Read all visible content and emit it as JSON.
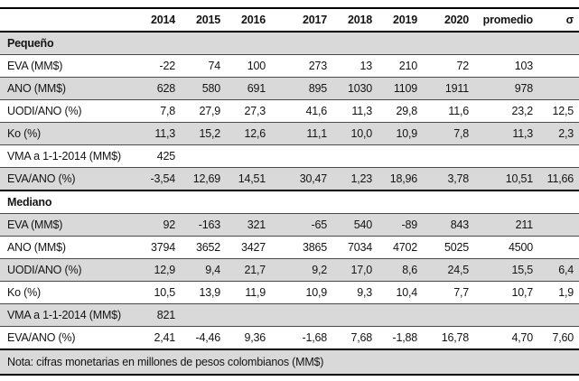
{
  "table": {
    "columns": [
      "2014",
      "2015",
      "2016",
      "2017",
      "2018",
      "2019",
      "2020",
      "promedio",
      "σ"
    ],
    "sections": [
      {
        "title": "Pequeño",
        "rows": [
          {
            "label": "EVA (MM$)",
            "values": [
              "-22",
              "74",
              "100",
              "273",
              "13",
              "210",
              "72",
              "103",
              ""
            ]
          },
          {
            "label": "ANO (MM$)",
            "values": [
              "628",
              "580",
              "691",
              "895",
              "1030",
              "1109",
              "1911",
              "978",
              ""
            ]
          },
          {
            "label": "UODI/ANO (%)",
            "values": [
              "7,8",
              "27,9",
              "27,3",
              "41,6",
              "11,3",
              "29,8",
              "11,6",
              "23,2",
              "12,5"
            ]
          },
          {
            "label": "Ko (%)",
            "values": [
              "11,3",
              "15,2",
              "12,6",
              "11,1",
              "10,0",
              "10,9",
              "7,8",
              "11,3",
              "2,3"
            ]
          },
          {
            "label": "VMA a 1-1-2014 (MM$)",
            "values": [
              "425",
              "",
              "",
              "",
              "",
              "",
              "",
              "",
              ""
            ]
          },
          {
            "label": "EVA/ANO (%)",
            "values": [
              "-3,54",
              "12,69",
              "14,51",
              "30,47",
              "1,23",
              "18,96",
              "3,78",
              "10,51",
              "11,66"
            ]
          }
        ]
      },
      {
        "title": "Mediano",
        "rows": [
          {
            "label": "EVA (MM$)",
            "values": [
              "92",
              "-163",
              "321",
              "-65",
              "540",
              "-89",
              "843",
              "211",
              ""
            ]
          },
          {
            "label": "ANO (MM$)",
            "values": [
              "3794",
              "3652",
              "3427",
              "3865",
              "7034",
              "4702",
              "5025",
              "4500",
              ""
            ]
          },
          {
            "label": "UODI/ANO (%)",
            "values": [
              "12,9",
              "9,4",
              "21,7",
              "9,2",
              "17,0",
              "8,6",
              "24,5",
              "15,5",
              "6,4"
            ]
          },
          {
            "label": "Ko (%)",
            "values": [
              "10,5",
              "13,9",
              "11,9",
              "10,9",
              "9,3",
              "10,4",
              "7,7",
              "10,7",
              "1,9"
            ]
          },
          {
            "label": "VMA a 1-1-2014 (MM$)",
            "values": [
              "821",
              "",
              "",
              "",
              "",
              "",
              "",
              "",
              ""
            ]
          },
          {
            "label": "EVA/ANO (%)",
            "values": [
              "2,41",
              "-4,46",
              "9,36",
              "-1,68",
              "7,68",
              "-1,88",
              "16,78",
              "4,70",
              "7,60"
            ]
          }
        ]
      }
    ],
    "note": "Nota: cifras monetarias en millones de pesos colombianos (MM$)"
  },
  "colors": {
    "stripe": "#d9d9d9",
    "border_strong": "#000000",
    "border_light": "#4a4a4a",
    "text": "#141414"
  }
}
